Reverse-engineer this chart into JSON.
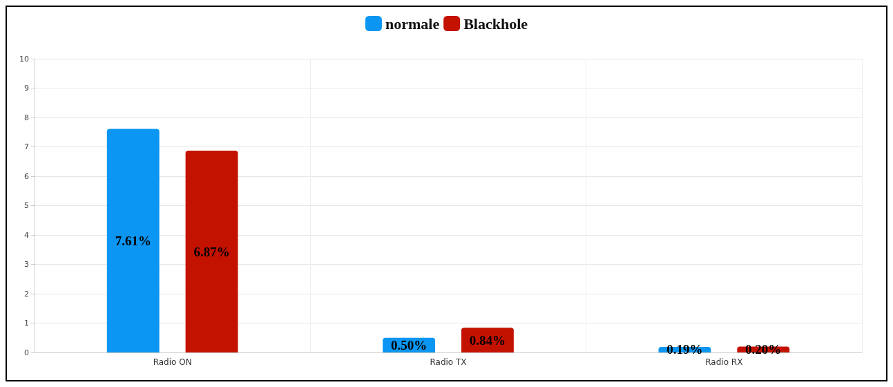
{
  "chart_data": {
    "type": "bar",
    "categories": [
      "Radio ON",
      "Radio TX",
      "Radio RX"
    ],
    "series": [
      {
        "name": "normale",
        "color": "#0a96f2",
        "values": [
          7.61,
          0.5,
          0.19
        ],
        "value_labels": [
          "7.61%",
          "0.50%",
          "0.19%"
        ]
      },
      {
        "name": "Blackhole",
        "color": "#c41200",
        "values": [
          6.87,
          0.84,
          0.2
        ],
        "value_labels": [
          "6.87%",
          "0.84%",
          "0.20%"
        ]
      }
    ],
    "ylim": [
      0,
      10
    ],
    "yticks": [
      0,
      1,
      2,
      3,
      4,
      5,
      6,
      7,
      8,
      9,
      10
    ],
    "grid": true,
    "legend": "top"
  }
}
